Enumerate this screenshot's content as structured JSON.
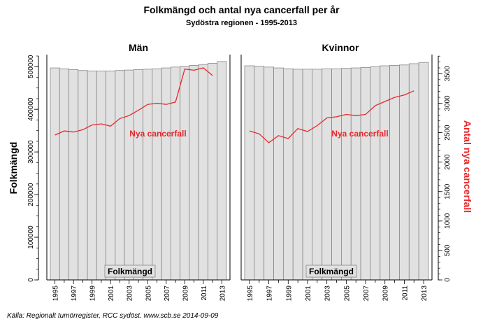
{
  "title": "Folkmängd och antal nya cancerfall per år",
  "subtitle": "Sydöstra regionen - 1995-2013",
  "source": "Källa: Regionalt tumörregister, RCC sydöst. www.scb.se 2014-09-09",
  "colors": {
    "bar_fill": "#e1e1e1",
    "bar_stroke": "#888888",
    "line": "#e8282b",
    "right_axis_label": "#e8282b"
  },
  "chart_data": [
    {
      "type": "bar+line",
      "panel_title": "Män",
      "x": [
        1995,
        1996,
        1997,
        1998,
        1999,
        2000,
        2001,
        2002,
        2003,
        2004,
        2005,
        2006,
        2007,
        2008,
        2009,
        2010,
        2011,
        2012,
        2013
      ],
      "x_tick_labels": [
        "1995",
        "1997",
        "1999",
        "2001",
        "2003",
        "2005",
        "2007",
        "2009",
        "2011",
        "2013"
      ],
      "bar_series": {
        "name": "Folkmängd",
        "values": [
          497000,
          495000,
          493000,
          491000,
          490000,
          490000,
          490000,
          491000,
          492000,
          493000,
          494000,
          495000,
          497000,
          499000,
          501000,
          503000,
          505000,
          508000,
          512000
        ]
      },
      "line_series": {
        "name": "Nya cancerfall",
        "x": [
          1995,
          1996,
          1997,
          1998,
          1999,
          2000,
          2001,
          2002,
          2003,
          2004,
          2005,
          2006,
          2007,
          2008,
          2009,
          2010,
          2011,
          2012
        ],
        "values": [
          2460,
          2530,
          2510,
          2550,
          2630,
          2650,
          2610,
          2740,
          2790,
          2880,
          2980,
          3000,
          2980,
          3020,
          3580,
          3560,
          3600,
          3470
        ]
      },
      "left_axis": {
        "label": "Folkmängd",
        "ticks": [
          "0",
          "100000",
          "200000",
          "300000",
          "400000",
          "500000"
        ],
        "ylim": [
          0,
          525000
        ]
      },
      "right_axis": {
        "label": "",
        "ticks": [],
        "ylim": [
          0,
          3802
        ]
      },
      "legend_labels": [
        "Folkmängd",
        "Nya cancerfall"
      ]
    },
    {
      "type": "bar+line",
      "panel_title": "Kvinnor",
      "x": [
        1995,
        1996,
        1997,
        1998,
        1999,
        2000,
        2001,
        2002,
        2003,
        2004,
        2005,
        2006,
        2007,
        2008,
        2009,
        2010,
        2011,
        2012,
        2013
      ],
      "x_tick_labels": [
        "1995",
        "1997",
        "1999",
        "2001",
        "2003",
        "2005",
        "2007",
        "2009",
        "2011",
        "2013"
      ],
      "bar_series": {
        "name": "Folkmängd",
        "values": [
          502000,
          501000,
          499000,
          497000,
          495000,
          494000,
          494000,
          494000,
          495000,
          495000,
          496000,
          497000,
          498000,
          500000,
          502000,
          503000,
          504000,
          507000,
          510000
        ]
      },
      "line_series": {
        "name": "Nya cancerfall",
        "x": [
          1995,
          1996,
          1997,
          1998,
          1999,
          2000,
          2001,
          2002,
          2003,
          2004,
          2005,
          2006,
          2007,
          2008,
          2009,
          2010,
          2011,
          2012
        ],
        "values": [
          2530,
          2480,
          2330,
          2450,
          2400,
          2570,
          2520,
          2620,
          2750,
          2770,
          2810,
          2790,
          2810,
          2960,
          3030,
          3100,
          3140,
          3210
        ]
      },
      "left_axis": {
        "label": "",
        "ticks": [],
        "ylim": [
          0,
          525000
        ]
      },
      "right_axis": {
        "label": "Antal nya cancerfall",
        "ticks": [
          "0",
          "500",
          "1000",
          "1500",
          "2000",
          "2500",
          "3000",
          "3500"
        ],
        "ylim": [
          0,
          3802
        ]
      },
      "legend_labels": [
        "Folkmängd",
        "Nya cancerfall"
      ]
    }
  ]
}
